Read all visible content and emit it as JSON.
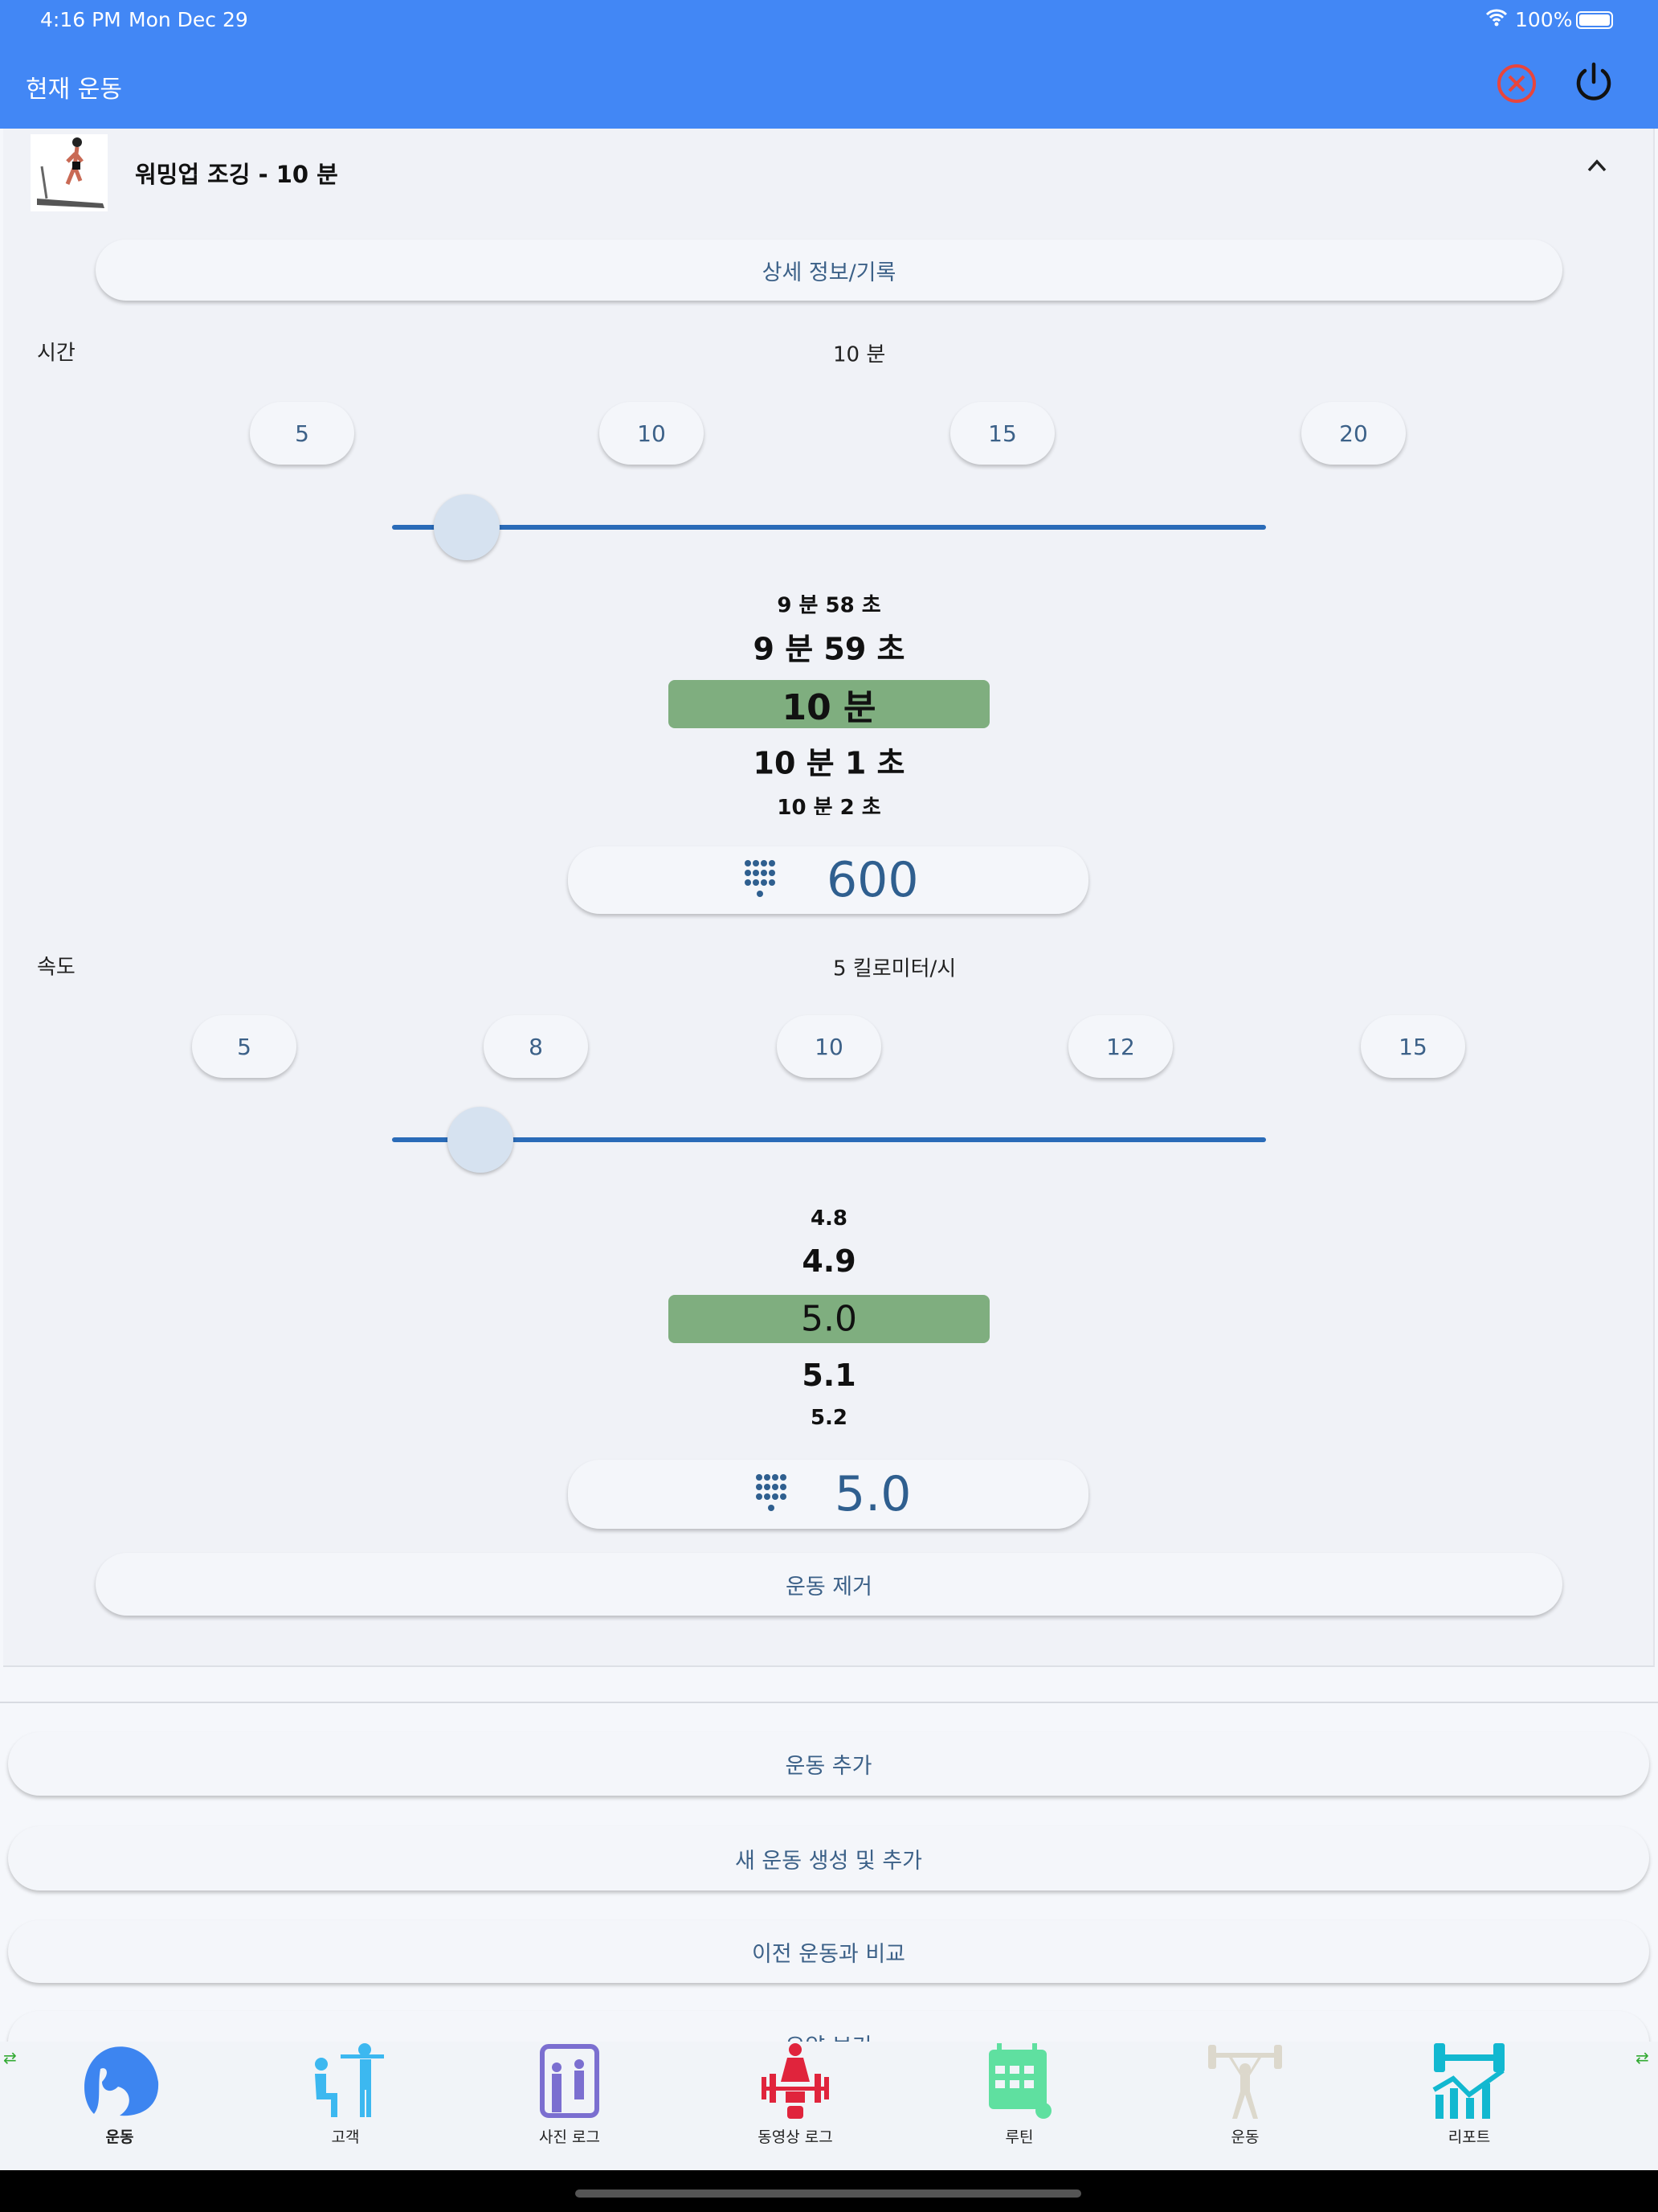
{
  "status_bar": {
    "time": "4:16 PM",
    "date": "Mon Dec 29",
    "battery": "100%"
  },
  "header": {
    "title": "현재 운동"
  },
  "exercise": {
    "title": "워밍업 조깅 - 10 분",
    "details_button": "상세 정보/기록",
    "remove_button": "운동 제거"
  },
  "time": {
    "label": "시간",
    "value_text": "10 분",
    "presets": [
      "5",
      "10",
      "15",
      "20"
    ],
    "slider_fraction": 0.05,
    "picker": [
      "9 분 58 초",
      "9 분 59 초",
      "10 분",
      "10 분 1 초",
      "10 분 2 초"
    ],
    "input_value": "600"
  },
  "speed": {
    "label": "속도",
    "value_text": "5 킬로미터/시",
    "presets": [
      "5",
      "8",
      "10",
      "12",
      "15"
    ],
    "slider_fraction": 0.07,
    "picker": [
      "4.8",
      "4.9",
      "5.0",
      "5.1",
      "5.2"
    ],
    "input_value": "5.0"
  },
  "actions": [
    "운동 추가",
    "새 운동 생성 및 추가",
    "이전 운동과 비교",
    "요약 보기"
  ],
  "bottom_nav": [
    {
      "label": "운동",
      "icon": "muscle-icon",
      "color": "#3d85f0"
    },
    {
      "label": "고객",
      "icon": "trainer-client-icon",
      "color": "#3cb8f0"
    },
    {
      "label": "사진 로그",
      "icon": "photo-log-icon",
      "color": "#7b6fd0"
    },
    {
      "label": "동영상 로그",
      "icon": "video-log-icon",
      "color": "#e0243c"
    },
    {
      "label": "루틴",
      "icon": "calendar-routine-icon",
      "color": "#5fe0a0"
    },
    {
      "label": "운동",
      "icon": "weightlifter-icon",
      "color": "#dcd8cc"
    },
    {
      "label": "리포트",
      "icon": "report-chart-icon",
      "color": "#12b8d0"
    }
  ],
  "colors": {
    "header": "#4287f5",
    "selected": "#7fae7f",
    "accent": "#2a6bb8"
  }
}
